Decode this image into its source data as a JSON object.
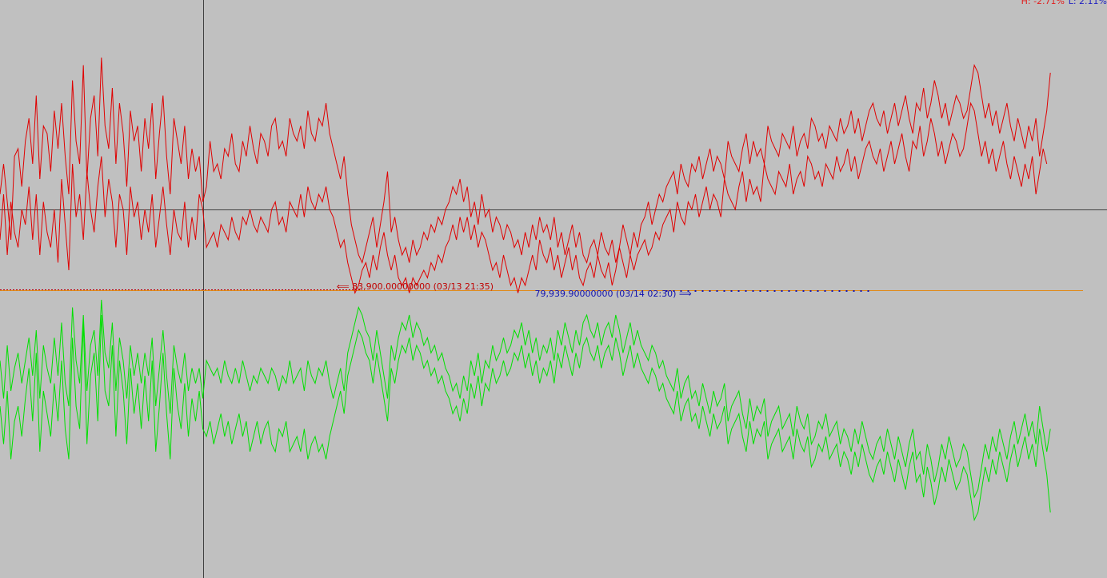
{
  "stats": {
    "high": "H: -2.71%",
    "low": "L: 2.11%"
  },
  "colors": {
    "background": "#c0c0c0",
    "upper": "#e00000",
    "lower": "#00e000",
    "crosshair": "#404040",
    "baseline": "#e08a1a",
    "high_marker": "#c00000",
    "low_marker": "#1010b0"
  },
  "markers": {
    "high_label": "⟸ 83,900.00000000 (03/13 21:35)",
    "low_label": "79,939.90000000 (03/14 02:30) ⟹"
  },
  "chart_data": {
    "type": "line",
    "title": "",
    "xlabel": "",
    "ylabel": "",
    "points": 300,
    "crosshair_index": 56,
    "high_index": 100,
    "low_index": 175,
    "upper_range": [
      -1,
      1
    ],
    "lower_range": [
      -1,
      1
    ],
    "series": [
      {
        "name": "",
        "panel": "upper",
        "values": [
          0.1,
          0.3,
          0.05,
          -0.2,
          0.35,
          0.4,
          0.15,
          0.45,
          0.6,
          0.3,
          0.75,
          0.2,
          0.55,
          0.5,
          0.25,
          0.65,
          0.4,
          0.7,
          0.35,
          0.1,
          0.85,
          0.45,
          0.3,
          0.95,
          0.2,
          0.6,
          0.75,
          0.35,
          1.0,
          0.55,
          0.4,
          0.8,
          0.3,
          0.7,
          0.5,
          0.15,
          0.65,
          0.45,
          0.55,
          0.25,
          0.6,
          0.4,
          0.7,
          0.2,
          0.5,
          0.75,
          0.35,
          0.1,
          0.6,
          0.45,
          0.3,
          0.55,
          0.2,
          0.4,
          0.25,
          0.35,
          0.05,
          0.15,
          0.45,
          0.25,
          0.3,
          0.2,
          0.4,
          0.35,
          0.5,
          0.3,
          0.25,
          0.45,
          0.35,
          0.55,
          0.4,
          0.3,
          0.5,
          0.45,
          0.35,
          0.55,
          0.6,
          0.4,
          0.45,
          0.35,
          0.6,
          0.5,
          0.45,
          0.55,
          0.4,
          0.65,
          0.5,
          0.45,
          0.6,
          0.55,
          0.7,
          0.5,
          0.4,
          0.3,
          0.2,
          0.35,
          0.1,
          -0.1,
          -0.2,
          -0.3,
          -0.35,
          -0.25,
          -0.15,
          -0.05,
          -0.25,
          -0.1,
          0.05,
          0.25,
          -0.15,
          -0.05,
          -0.2,
          -0.3,
          -0.25,
          -0.35,
          -0.2,
          -0.3,
          -0.25,
          -0.15,
          -0.2,
          -0.1,
          -0.15,
          -0.05,
          -0.1,
          0.0,
          0.05,
          0.15,
          0.1,
          0.2,
          0.05,
          0.15,
          -0.05,
          0.05,
          -0.1,
          0.1,
          -0.05,
          0.0,
          -0.15,
          -0.05,
          -0.1,
          -0.2,
          -0.1,
          -0.15,
          -0.25,
          -0.2,
          -0.3,
          -0.15,
          -0.25,
          -0.1,
          -0.2,
          -0.05,
          -0.15,
          -0.1,
          -0.2,
          -0.05,
          -0.25,
          -0.15,
          -0.3,
          -0.2,
          -0.1,
          -0.25,
          -0.15,
          -0.3,
          -0.35,
          -0.25,
          -0.2,
          -0.3,
          -0.15,
          -0.25,
          -0.3,
          -0.2,
          -0.35,
          -0.25,
          -0.1,
          -0.2,
          -0.3,
          -0.15,
          -0.25,
          -0.1,
          -0.05,
          0.05,
          -0.1,
          0.0,
          0.1,
          0.05,
          0.15,
          0.2,
          0.25,
          0.1,
          0.3,
          0.2,
          0.15,
          0.3,
          0.25,
          0.35,
          0.2,
          0.3,
          0.4,
          0.25,
          0.35,
          0.3,
          0.2,
          0.45,
          0.35,
          0.3,
          0.25,
          0.4,
          0.5,
          0.3,
          0.45,
          0.35,
          0.4,
          0.3,
          0.55,
          0.45,
          0.4,
          0.35,
          0.5,
          0.45,
          0.4,
          0.55,
          0.35,
          0.45,
          0.5,
          0.4,
          0.6,
          0.55,
          0.45,
          0.5,
          0.4,
          0.55,
          0.5,
          0.45,
          0.6,
          0.5,
          0.55,
          0.65,
          0.5,
          0.6,
          0.45,
          0.55,
          0.65,
          0.7,
          0.6,
          0.55,
          0.65,
          0.5,
          0.6,
          0.7,
          0.55,
          0.65,
          0.75,
          0.6,
          0.5,
          0.7,
          0.65,
          0.8,
          0.6,
          0.7,
          0.85,
          0.75,
          0.6,
          0.7,
          0.55,
          0.65,
          0.75,
          0.7,
          0.6,
          0.65,
          0.8,
          0.95,
          0.9,
          0.75,
          0.6,
          0.7,
          0.55,
          0.65,
          0.5,
          0.6,
          0.7,
          0.55,
          0.45,
          0.6,
          0.5,
          0.4,
          0.55,
          0.45,
          0.6,
          0.35,
          0.5,
          0.65,
          0.9
        ]
      },
      {
        "name": "",
        "panel": "upper",
        "values": [
          -0.2,
          0.1,
          -0.3,
          0.05,
          -0.15,
          -0.25,
          0.0,
          -0.1,
          0.15,
          -0.2,
          0.1,
          -0.3,
          0.05,
          -0.15,
          -0.25,
          0.0,
          -0.35,
          0.2,
          -0.1,
          -0.4,
          0.3,
          -0.05,
          0.1,
          -0.2,
          0.25,
          0.0,
          -0.15,
          0.15,
          0.35,
          -0.05,
          0.2,
          0.05,
          -0.25,
          0.1,
          0.0,
          -0.3,
          0.15,
          -0.05,
          0.05,
          -0.2,
          0.0,
          -0.15,
          0.1,
          -0.25,
          -0.05,
          0.15,
          -0.1,
          -0.3,
          0.0,
          -0.15,
          -0.2,
          0.05,
          -0.25,
          -0.05,
          -0.2,
          0.1,
          0.0,
          -0.25,
          -0.2,
          -0.15,
          -0.25,
          -0.1,
          -0.15,
          -0.2,
          -0.05,
          -0.15,
          -0.2,
          -0.05,
          -0.1,
          0.0,
          -0.1,
          -0.15,
          -0.05,
          -0.1,
          -0.15,
          0.0,
          0.05,
          -0.1,
          -0.05,
          -0.15,
          0.05,
          0.0,
          -0.05,
          0.1,
          -0.05,
          0.15,
          0.05,
          0.0,
          0.1,
          0.05,
          0.15,
          0.0,
          -0.05,
          -0.15,
          -0.25,
          -0.2,
          -0.35,
          -0.45,
          -0.55,
          -0.5,
          -0.4,
          -0.35,
          -0.45,
          -0.3,
          -0.4,
          -0.25,
          -0.15,
          -0.3,
          -0.4,
          -0.3,
          -0.45,
          -0.5,
          -0.45,
          -0.55,
          -0.45,
          -0.5,
          -0.45,
          -0.4,
          -0.45,
          -0.35,
          -0.4,
          -0.3,
          -0.35,
          -0.25,
          -0.2,
          -0.1,
          -0.2,
          -0.05,
          -0.15,
          -0.05,
          -0.2,
          -0.1,
          -0.25,
          -0.15,
          -0.2,
          -0.3,
          -0.4,
          -0.35,
          -0.45,
          -0.3,
          -0.4,
          -0.5,
          -0.45,
          -0.55,
          -0.45,
          -0.5,
          -0.4,
          -0.3,
          -0.4,
          -0.2,
          -0.3,
          -0.35,
          -0.25,
          -0.4,
          -0.3,
          -0.45,
          -0.35,
          -0.25,
          -0.4,
          -0.3,
          -0.45,
          -0.5,
          -0.4,
          -0.35,
          -0.45,
          -0.3,
          -0.4,
          -0.45,
          -0.35,
          -0.5,
          -0.4,
          -0.25,
          -0.35,
          -0.45,
          -0.3,
          -0.4,
          -0.3,
          -0.25,
          -0.2,
          -0.3,
          -0.25,
          -0.15,
          -0.2,
          -0.1,
          -0.05,
          0.0,
          -0.15,
          0.05,
          -0.05,
          -0.1,
          0.05,
          0.0,
          0.1,
          -0.05,
          0.05,
          0.15,
          0.0,
          0.1,
          0.05,
          -0.05,
          0.2,
          0.1,
          0.05,
          0.0,
          0.15,
          0.25,
          0.05,
          0.2,
          0.1,
          0.15,
          0.05,
          0.3,
          0.2,
          0.15,
          0.1,
          0.25,
          0.2,
          0.15,
          0.3,
          0.1,
          0.2,
          0.25,
          0.15,
          0.35,
          0.3,
          0.2,
          0.25,
          0.15,
          0.3,
          0.25,
          0.2,
          0.35,
          0.25,
          0.3,
          0.4,
          0.25,
          0.35,
          0.2,
          0.3,
          0.4,
          0.45,
          0.35,
          0.3,
          0.4,
          0.25,
          0.35,
          0.45,
          0.3,
          0.4,
          0.5,
          0.35,
          0.25,
          0.45,
          0.4,
          0.55,
          0.35,
          0.45,
          0.6,
          0.5,
          0.35,
          0.45,
          0.3,
          0.4,
          0.5,
          0.45,
          0.35,
          0.4,
          0.55,
          0.7,
          0.65,
          0.5,
          0.35,
          0.45,
          0.3,
          0.4,
          0.25,
          0.35,
          0.45,
          0.3,
          0.2,
          0.35,
          0.25,
          0.15,
          0.3,
          0.2,
          0.35,
          0.1,
          0.25,
          0.4,
          0.3
        ]
      },
      {
        "name": "",
        "panel": "lower",
        "values": [
          -0.2,
          -0.45,
          -0.1,
          -0.55,
          -0.3,
          -0.2,
          -0.4,
          -0.15,
          0.05,
          -0.3,
          0.15,
          -0.5,
          -0.1,
          -0.25,
          -0.4,
          -0.05,
          -0.3,
          0.1,
          -0.35,
          -0.55,
          0.25,
          -0.2,
          -0.35,
          0.35,
          -0.45,
          0.0,
          0.15,
          -0.3,
          0.4,
          -0.1,
          -0.2,
          0.2,
          -0.4,
          0.1,
          -0.1,
          -0.45,
          0.05,
          -0.25,
          -0.05,
          -0.35,
          0.0,
          -0.3,
          0.1,
          -0.5,
          -0.2,
          0.15,
          -0.25,
          -0.55,
          0.05,
          -0.2,
          -0.35,
          -0.05,
          -0.4,
          -0.15,
          -0.3,
          -0.1,
          -0.35,
          -0.4,
          -0.3,
          -0.45,
          -0.35,
          -0.25,
          -0.4,
          -0.3,
          -0.45,
          -0.35,
          -0.25,
          -0.4,
          -0.3,
          -0.5,
          -0.4,
          -0.3,
          -0.45,
          -0.35,
          -0.3,
          -0.45,
          -0.5,
          -0.35,
          -0.4,
          -0.3,
          -0.5,
          -0.45,
          -0.4,
          -0.5,
          -0.35,
          -0.55,
          -0.45,
          -0.4,
          -0.5,
          -0.45,
          -0.55,
          -0.4,
          -0.3,
          -0.2,
          -0.1,
          -0.25,
          0.0,
          0.1,
          0.2,
          0.3,
          0.25,
          0.15,
          0.1,
          -0.05,
          0.15,
          0.0,
          -0.15,
          -0.3,
          0.05,
          -0.05,
          0.1,
          0.2,
          0.15,
          0.25,
          0.1,
          0.2,
          0.15,
          0.05,
          0.1,
          0.0,
          0.05,
          -0.05,
          0.0,
          -0.1,
          -0.15,
          -0.25,
          -0.2,
          -0.3,
          -0.15,
          -0.25,
          -0.05,
          -0.15,
          0.0,
          -0.2,
          -0.05,
          -0.1,
          0.05,
          -0.05,
          0.0,
          0.1,
          0.0,
          0.05,
          0.15,
          0.1,
          0.2,
          0.05,
          0.15,
          0.0,
          0.1,
          -0.05,
          0.05,
          0.0,
          0.1,
          -0.05,
          0.15,
          0.05,
          0.2,
          0.1,
          0.0,
          0.15,
          0.05,
          0.2,
          0.25,
          0.15,
          0.1,
          0.2,
          0.05,
          0.15,
          0.2,
          0.1,
          0.25,
          0.15,
          0.0,
          0.1,
          0.2,
          0.05,
          0.15,
          0.05,
          0.0,
          -0.05,
          0.05,
          0.0,
          -0.1,
          -0.05,
          -0.15,
          -0.2,
          -0.25,
          -0.1,
          -0.3,
          -0.2,
          -0.15,
          -0.3,
          -0.25,
          -0.35,
          -0.2,
          -0.3,
          -0.4,
          -0.25,
          -0.35,
          -0.3,
          -0.2,
          -0.45,
          -0.35,
          -0.3,
          -0.25,
          -0.4,
          -0.5,
          -0.3,
          -0.45,
          -0.35,
          -0.4,
          -0.3,
          -0.55,
          -0.45,
          -0.4,
          -0.35,
          -0.5,
          -0.45,
          -0.4,
          -0.55,
          -0.35,
          -0.45,
          -0.5,
          -0.4,
          -0.6,
          -0.55,
          -0.45,
          -0.5,
          -0.4,
          -0.55,
          -0.5,
          -0.45,
          -0.6,
          -0.5,
          -0.55,
          -0.65,
          -0.5,
          -0.6,
          -0.45,
          -0.55,
          -0.65,
          -0.7,
          -0.6,
          -0.55,
          -0.65,
          -0.5,
          -0.6,
          -0.7,
          -0.55,
          -0.65,
          -0.75,
          -0.6,
          -0.5,
          -0.7,
          -0.65,
          -0.8,
          -0.6,
          -0.7,
          -0.85,
          -0.75,
          -0.6,
          -0.7,
          -0.55,
          -0.65,
          -0.75,
          -0.7,
          -0.6,
          -0.65,
          -0.8,
          -0.95,
          -0.9,
          -0.75,
          -0.6,
          -0.7,
          -0.55,
          -0.65,
          -0.5,
          -0.6,
          -0.7,
          -0.55,
          -0.45,
          -0.6,
          -0.5,
          -0.4,
          -0.55,
          -0.45,
          -0.6,
          -0.35,
          -0.5,
          -0.65,
          -0.9
        ]
      },
      {
        "name": "",
        "panel": "lower",
        "values": [
          0.1,
          -0.15,
          0.2,
          -0.1,
          0.05,
          0.15,
          -0.05,
          0.1,
          0.25,
          0.0,
          0.3,
          -0.15,
          0.2,
          0.05,
          -0.05,
          0.25,
          0.0,
          0.35,
          -0.05,
          -0.2,
          0.45,
          0.1,
          -0.05,
          0.4,
          -0.1,
          0.2,
          0.3,
          0.0,
          0.5,
          0.15,
          0.05,
          0.35,
          -0.1,
          0.25,
          0.1,
          -0.15,
          0.2,
          0.0,
          0.15,
          -0.05,
          0.15,
          0.0,
          0.25,
          -0.2,
          0.05,
          0.3,
          0.0,
          -0.25,
          0.2,
          0.05,
          -0.05,
          0.15,
          -0.1,
          0.05,
          -0.05,
          0.05,
          -0.15,
          0.1,
          0.05,
          0.0,
          0.05,
          -0.05,
          0.1,
          0.0,
          -0.05,
          0.05,
          -0.05,
          0.1,
          0.0,
          -0.1,
          0.0,
          -0.05,
          0.05,
          0.0,
          -0.05,
          0.05,
          0.0,
          -0.1,
          0.0,
          -0.05,
          0.1,
          -0.05,
          0.0,
          0.05,
          -0.1,
          0.1,
          0.0,
          -0.05,
          0.05,
          0.0,
          0.1,
          -0.05,
          -0.15,
          -0.05,
          0.05,
          -0.1,
          0.15,
          0.25,
          0.35,
          0.45,
          0.4,
          0.3,
          0.25,
          0.1,
          0.3,
          0.15,
          0.0,
          -0.15,
          0.2,
          0.1,
          0.25,
          0.35,
          0.3,
          0.4,
          0.25,
          0.35,
          0.3,
          0.2,
          0.25,
          0.15,
          0.2,
          0.1,
          0.15,
          0.05,
          0.0,
          -0.1,
          -0.05,
          -0.15,
          0.0,
          -0.1,
          0.1,
          0.0,
          0.15,
          -0.05,
          0.1,
          0.05,
          0.2,
          0.1,
          0.15,
          0.25,
          0.15,
          0.2,
          0.3,
          0.25,
          0.35,
          0.2,
          0.3,
          0.15,
          0.25,
          0.1,
          0.2,
          0.15,
          0.25,
          0.1,
          0.3,
          0.2,
          0.35,
          0.25,
          0.15,
          0.3,
          0.2,
          0.35,
          0.4,
          0.3,
          0.25,
          0.35,
          0.2,
          0.3,
          0.35,
          0.25,
          0.4,
          0.3,
          0.15,
          0.25,
          0.35,
          0.2,
          0.3,
          0.2,
          0.15,
          0.1,
          0.2,
          0.15,
          0.05,
          0.1,
          0.0,
          -0.05,
          -0.1,
          0.05,
          -0.15,
          -0.05,
          0.0,
          -0.15,
          -0.1,
          -0.2,
          -0.05,
          -0.15,
          -0.25,
          -0.1,
          -0.2,
          -0.15,
          -0.05,
          -0.3,
          -0.2,
          -0.15,
          -0.1,
          -0.25,
          -0.35,
          -0.15,
          -0.3,
          -0.2,
          -0.25,
          -0.15,
          -0.4,
          -0.3,
          -0.25,
          -0.2,
          -0.35,
          -0.3,
          -0.25,
          -0.4,
          -0.2,
          -0.3,
          -0.35,
          -0.25,
          -0.45,
          -0.4,
          -0.3,
          -0.35,
          -0.25,
          -0.4,
          -0.35,
          -0.3,
          -0.45,
          -0.35,
          -0.4,
          -0.5,
          -0.35,
          -0.45,
          -0.3,
          -0.4,
          -0.5,
          -0.55,
          -0.45,
          -0.4,
          -0.5,
          -0.35,
          -0.45,
          -0.55,
          -0.4,
          -0.5,
          -0.6,
          -0.45,
          -0.35,
          -0.55,
          -0.5,
          -0.65,
          -0.45,
          -0.55,
          -0.7,
          -0.6,
          -0.45,
          -0.55,
          -0.4,
          -0.5,
          -0.6,
          -0.55,
          -0.45,
          -0.5,
          -0.65,
          -0.8,
          -0.75,
          -0.6,
          -0.45,
          -0.55,
          -0.4,
          -0.5,
          -0.35,
          -0.45,
          -0.55,
          -0.4,
          -0.3,
          -0.45,
          -0.35,
          -0.25,
          -0.4,
          -0.3,
          -0.45,
          -0.2,
          -0.35,
          -0.5,
          -0.35
        ]
      }
    ]
  }
}
